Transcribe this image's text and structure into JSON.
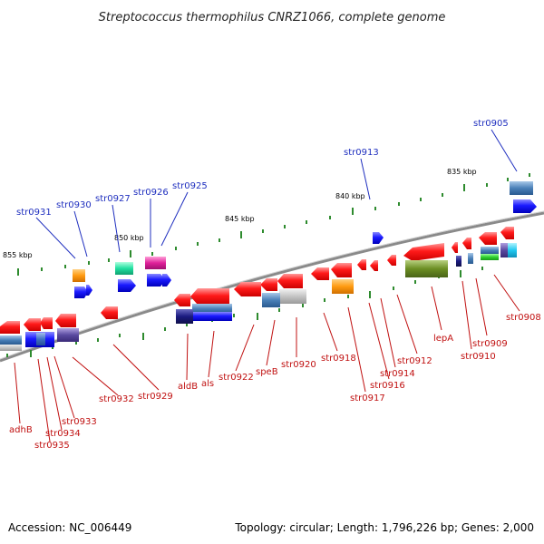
{
  "title": "Streptococcus thermophilus CNRZ1066, complete genome",
  "footer": {
    "accession": "Accession: NC_006449",
    "summary": "Topology: circular; Length: 1,796,226 bp; Genes: 2,000"
  },
  "scale_labels": [
    "835 kbp",
    "840 kbp",
    "845 kbp",
    "850 kbp",
    "855 kbp"
  ],
  "colors": {
    "backbone": "#8a8a8a",
    "reverse_arrow": "#ee1111",
    "forward_arrow": "#1515ee",
    "tick": "#2e8b2e",
    "forward_line": "#1f2fbf",
    "reverse_line": "#c01010"
  },
  "forward_labels": [
    "str0905",
    "str0913",
    "str0925",
    "str0926",
    "str0927",
    "str0930",
    "str0931"
  ],
  "reverse_labels": [
    "str0908",
    "str0909",
    "str0910",
    "lepA",
    "str0912",
    "str0914",
    "str0916",
    "str0917",
    "str0918",
    "str0920",
    "speB",
    "str0922",
    "als",
    "aldB",
    "str0929",
    "str0932",
    "str0933",
    "str0934",
    "str0935",
    "adhB"
  ]
}
